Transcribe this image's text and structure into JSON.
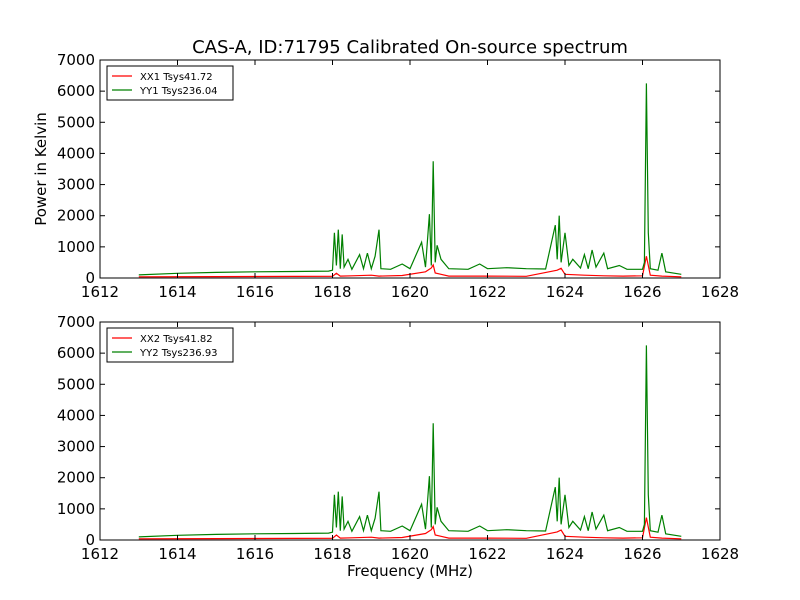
{
  "chart_data": [
    {
      "type": "line",
      "title": "CAS-A, ID:71795 Calibrated On-source spectrum",
      "xlabel": "",
      "ylabel": "Power in Kelvin",
      "xlim": [
        1612,
        1628
      ],
      "ylim": [
        0,
        7000
      ],
      "xticks": [
        "1612",
        "1614",
        "1616",
        "1618",
        "1620",
        "1622",
        "1624",
        "1626",
        "1628"
      ],
      "yticks": [
        "0",
        "1000",
        "2000",
        "3000",
        "4000",
        "5000",
        "6000",
        "7000"
      ],
      "legend_position": "top-left",
      "series": [
        {
          "name": "XX1 Tsys41.72",
          "color": "#ff0000",
          "points": [
            [
              1613.0,
              40
            ],
            [
              1615.0,
              45
            ],
            [
              1617.0,
              50
            ],
            [
              1618.0,
              55
            ],
            [
              1618.1,
              150
            ],
            [
              1618.2,
              60
            ],
            [
              1618.5,
              70
            ],
            [
              1619.0,
              90
            ],
            [
              1619.2,
              60
            ],
            [
              1619.8,
              80
            ],
            [
              1620.4,
              200
            ],
            [
              1620.55,
              320
            ],
            [
              1620.6,
              420
            ],
            [
              1620.65,
              160
            ],
            [
              1620.8,
              120
            ],
            [
              1621.0,
              60
            ],
            [
              1622.0,
              60
            ],
            [
              1623.0,
              55
            ],
            [
              1623.8,
              250
            ],
            [
              1623.9,
              310
            ],
            [
              1624.0,
              120
            ],
            [
              1624.5,
              90
            ],
            [
              1625.0,
              70
            ],
            [
              1625.5,
              60
            ],
            [
              1626.0,
              70
            ],
            [
              1626.1,
              700
            ],
            [
              1626.2,
              90
            ],
            [
              1626.5,
              60
            ],
            [
              1627.0,
              40
            ]
          ]
        },
        {
          "name": "YY1 Tsys236.04",
          "color": "#008000",
          "points": [
            [
              1613.0,
              100
            ],
            [
              1614.0,
              150
            ],
            [
              1615.0,
              180
            ],
            [
              1616.0,
              200
            ],
            [
              1617.0,
              210
            ],
            [
              1617.9,
              220
            ],
            [
              1618.0,
              250
            ],
            [
              1618.05,
              1450
            ],
            [
              1618.1,
              400
            ],
            [
              1618.15,
              1550
            ],
            [
              1618.2,
              300
            ],
            [
              1618.25,
              1400
            ],
            [
              1618.3,
              350
            ],
            [
              1618.4,
              600
            ],
            [
              1618.5,
              280
            ],
            [
              1618.7,
              750
            ],
            [
              1618.8,
              300
            ],
            [
              1618.9,
              800
            ],
            [
              1619.0,
              300
            ],
            [
              1619.1,
              700
            ],
            [
              1619.2,
              1550
            ],
            [
              1619.25,
              300
            ],
            [
              1619.5,
              280
            ],
            [
              1619.8,
              450
            ],
            [
              1620.0,
              300
            ],
            [
              1620.3,
              1150
            ],
            [
              1620.4,
              350
            ],
            [
              1620.5,
              2050
            ],
            [
              1620.55,
              400
            ],
            [
              1620.6,
              3750
            ],
            [
              1620.65,
              500
            ],
            [
              1620.7,
              1050
            ],
            [
              1620.8,
              600
            ],
            [
              1621.0,
              300
            ],
            [
              1621.5,
              280
            ],
            [
              1621.8,
              450
            ],
            [
              1622.0,
              300
            ],
            [
              1622.5,
              330
            ],
            [
              1623.0,
              300
            ],
            [
              1623.5,
              290
            ],
            [
              1623.75,
              1700
            ],
            [
              1623.8,
              600
            ],
            [
              1623.85,
              2000
            ],
            [
              1623.9,
              500
            ],
            [
              1624.0,
              1450
            ],
            [
              1624.1,
              400
            ],
            [
              1624.2,
              600
            ],
            [
              1624.4,
              320
            ],
            [
              1624.5,
              750
            ],
            [
              1624.6,
              300
            ],
            [
              1624.7,
              900
            ],
            [
              1624.8,
              350
            ],
            [
              1625.0,
              800
            ],
            [
              1625.1,
              300
            ],
            [
              1625.4,
              400
            ],
            [
              1625.6,
              280
            ],
            [
              1626.0,
              280
            ],
            [
              1626.05,
              500
            ],
            [
              1626.1,
              6250
            ],
            [
              1626.15,
              1450
            ],
            [
              1626.2,
              300
            ],
            [
              1626.4,
              250
            ],
            [
              1626.5,
              800
            ],
            [
              1626.6,
              200
            ],
            [
              1627.0,
              120
            ]
          ]
        }
      ]
    },
    {
      "type": "line",
      "title": "",
      "xlabel": "Frequency (MHz)",
      "ylabel": "",
      "xlim": [
        1612,
        1628
      ],
      "ylim": [
        0,
        7000
      ],
      "xticks": [
        "1612",
        "1614",
        "1616",
        "1618",
        "1620",
        "1622",
        "1624",
        "1626",
        "1628"
      ],
      "yticks": [
        "0",
        "1000",
        "2000",
        "3000",
        "4000",
        "5000",
        "6000",
        "7000"
      ],
      "legend_position": "top-left",
      "series": [
        {
          "name": "XX2 Tsys41.82",
          "color": "#ff0000",
          "points": [
            [
              1613.0,
              40
            ],
            [
              1615.0,
              45
            ],
            [
              1617.0,
              50
            ],
            [
              1618.0,
              55
            ],
            [
              1618.1,
              160
            ],
            [
              1618.2,
              60
            ],
            [
              1618.5,
              70
            ],
            [
              1619.0,
              90
            ],
            [
              1619.2,
              60
            ],
            [
              1619.8,
              80
            ],
            [
              1620.4,
              210
            ],
            [
              1620.55,
              330
            ],
            [
              1620.6,
              430
            ],
            [
              1620.65,
              160
            ],
            [
              1620.8,
              120
            ],
            [
              1621.0,
              60
            ],
            [
              1622.0,
              60
            ],
            [
              1623.0,
              55
            ],
            [
              1623.8,
              260
            ],
            [
              1623.9,
              320
            ],
            [
              1624.0,
              120
            ],
            [
              1624.5,
              90
            ],
            [
              1625.0,
              70
            ],
            [
              1625.5,
              60
            ],
            [
              1626.0,
              70
            ],
            [
              1626.1,
              720
            ],
            [
              1626.2,
              90
            ],
            [
              1626.5,
              60
            ],
            [
              1627.0,
              40
            ]
          ]
        },
        {
          "name": "YY2 Tsys236.93",
          "color": "#008000",
          "points": [
            [
              1613.0,
              100
            ],
            [
              1614.0,
              150
            ],
            [
              1615.0,
              180
            ],
            [
              1616.0,
              200
            ],
            [
              1617.0,
              210
            ],
            [
              1617.9,
              220
            ],
            [
              1618.0,
              250
            ],
            [
              1618.05,
              1450
            ],
            [
              1618.1,
              400
            ],
            [
              1618.15,
              1550
            ],
            [
              1618.2,
              300
            ],
            [
              1618.25,
              1400
            ],
            [
              1618.3,
              350
            ],
            [
              1618.4,
              600
            ],
            [
              1618.5,
              280
            ],
            [
              1618.7,
              750
            ],
            [
              1618.8,
              300
            ],
            [
              1618.9,
              800
            ],
            [
              1619.0,
              300
            ],
            [
              1619.1,
              700
            ],
            [
              1619.2,
              1550
            ],
            [
              1619.25,
              300
            ],
            [
              1619.5,
              280
            ],
            [
              1619.8,
              450
            ],
            [
              1620.0,
              300
            ],
            [
              1620.3,
              1150
            ],
            [
              1620.4,
              350
            ],
            [
              1620.5,
              2050
            ],
            [
              1620.55,
              400
            ],
            [
              1620.6,
              3750
            ],
            [
              1620.65,
              500
            ],
            [
              1620.7,
              1050
            ],
            [
              1620.8,
              600
            ],
            [
              1621.0,
              300
            ],
            [
              1621.5,
              280
            ],
            [
              1621.8,
              450
            ],
            [
              1622.0,
              300
            ],
            [
              1622.5,
              330
            ],
            [
              1623.0,
              300
            ],
            [
              1623.5,
              290
            ],
            [
              1623.75,
              1700
            ],
            [
              1623.8,
              600
            ],
            [
              1623.85,
              2000
            ],
            [
              1623.9,
              500
            ],
            [
              1624.0,
              1450
            ],
            [
              1624.1,
              400
            ],
            [
              1624.2,
              600
            ],
            [
              1624.4,
              320
            ],
            [
              1624.5,
              750
            ],
            [
              1624.6,
              300
            ],
            [
              1624.7,
              900
            ],
            [
              1624.8,
              350
            ],
            [
              1625.0,
              800
            ],
            [
              1625.1,
              300
            ],
            [
              1625.4,
              400
            ],
            [
              1625.6,
              280
            ],
            [
              1626.0,
              280
            ],
            [
              1626.05,
              500
            ],
            [
              1626.1,
              6250
            ],
            [
              1626.15,
              1450
            ],
            [
              1626.2,
              300
            ],
            [
              1626.4,
              250
            ],
            [
              1626.5,
              800
            ],
            [
              1626.6,
              200
            ],
            [
              1627.0,
              120
            ]
          ]
        }
      ]
    }
  ]
}
